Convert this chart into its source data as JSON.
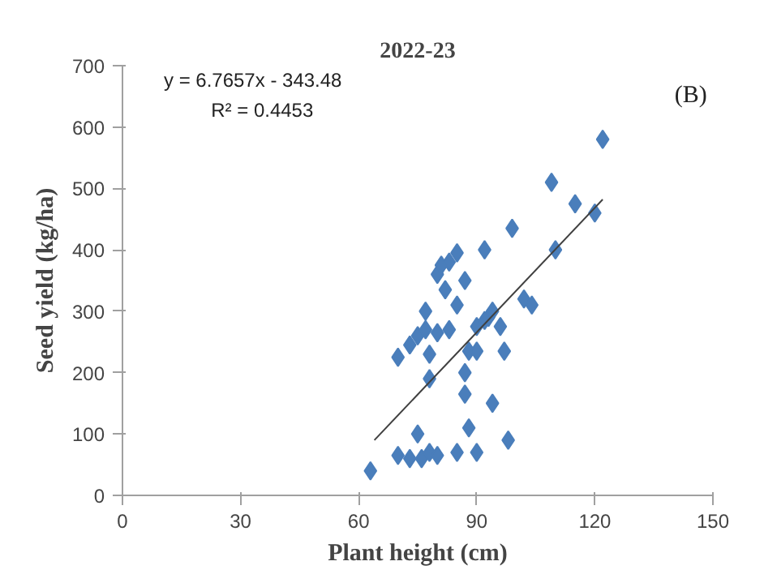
{
  "chart_data": {
    "type": "scatter",
    "title": "2022-23",
    "xlabel": "Plant height (cm)",
    "ylabel": "Seed yield (kg/ha)",
    "annotations": [
      "(B)",
      "y = 6.7657x - 343.48",
      "R² = 0.4453"
    ],
    "xlim": [
      0,
      150
    ],
    "ylim": [
      0,
      700
    ],
    "xticks": [
      0,
      30,
      60,
      90,
      120,
      150
    ],
    "yticks": [
      0,
      100,
      200,
      300,
      400,
      500,
      600,
      700
    ],
    "grid": false,
    "marker": "diamond",
    "series": [
      {
        "color": "#4a7ebb",
        "x": [
          63,
          70,
          73,
          75,
          76,
          78,
          80,
          85,
          90,
          88,
          98,
          70,
          73,
          75,
          77,
          77,
          80,
          78,
          80,
          81,
          83,
          85,
          82,
          85,
          87,
          88,
          83,
          87,
          87,
          92,
          93,
          94,
          90,
          94,
          92,
          97,
          99,
          102,
          104,
          96,
          109,
          110,
          115,
          120,
          122,
          90,
          78
        ],
        "values": [
          40,
          65,
          60,
          100,
          60,
          70,
          65,
          70,
          70,
          110,
          90,
          225,
          245,
          260,
          270,
          300,
          265,
          190,
          360,
          375,
          380,
          395,
          335,
          310,
          350,
          235,
          270,
          200,
          165,
          285,
          290,
          300,
          235,
          150,
          400,
          235,
          435,
          320,
          310,
          275,
          510,
          400,
          475,
          460,
          580,
          275,
          230
        ]
      },
      {
        "type": "line",
        "marker": "none",
        "color": "#404040",
        "x": [
          64,
          122
        ],
        "values": [
          90,
          482
        ]
      }
    ]
  }
}
